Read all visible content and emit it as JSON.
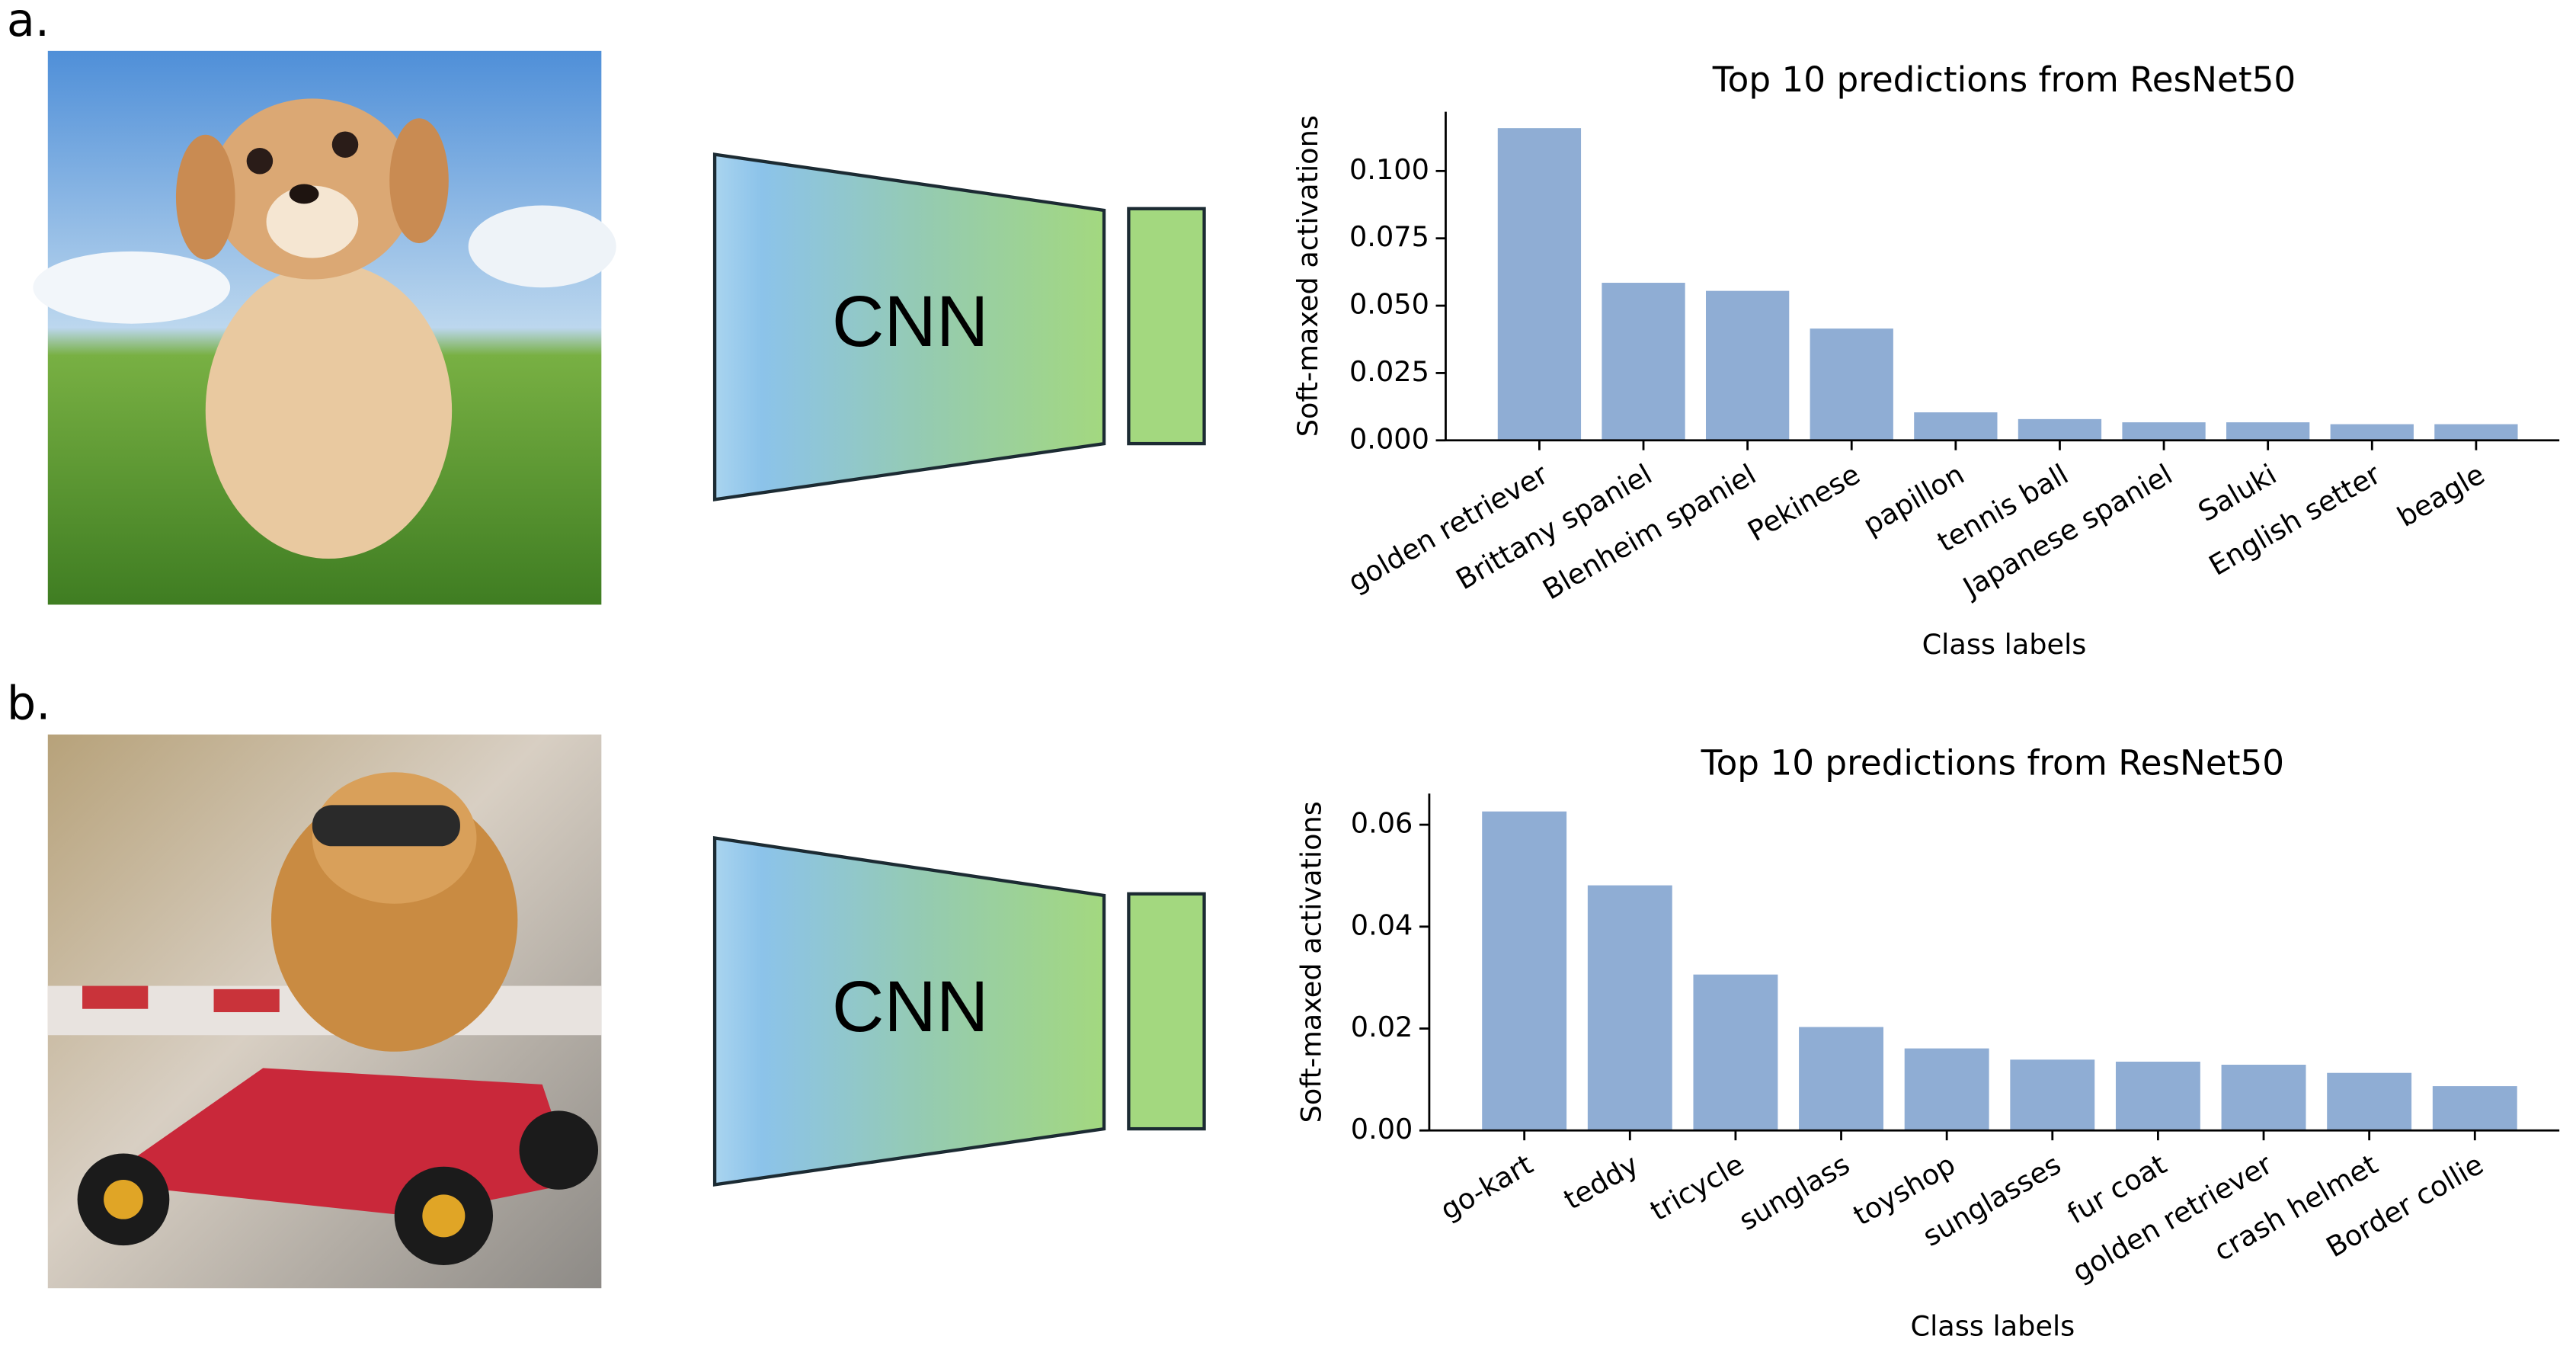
{
  "panels": [
    {
      "label": "a.",
      "model_label": "CNN"
    },
    {
      "label": "b.",
      "model_label": "CNN"
    }
  ],
  "chart_data": [
    {
      "type": "bar",
      "title": "Top 10 predictions from ResNet50",
      "x_label": "Class labels",
      "y_label": "Soft-maxed activations",
      "categories": [
        "golden retriever",
        "Brittany spaniel",
        "Blenheim spaniel",
        "Pekinese",
        "papillon",
        "tennis ball",
        "Japanese spaniel",
        "Saluki",
        "English setter",
        "beagle"
      ],
      "values": [
        0.1159,
        0.0585,
        0.0555,
        0.0415,
        0.0104,
        0.0079,
        0.0067,
        0.0067,
        0.006,
        0.006
      ],
      "color": "#8fadd4",
      "ylim": [
        0,
        0.122
      ],
      "yticks": [
        {
          "value": 0,
          "label": "0.000"
        },
        0.025,
        {
          "value": 0.05,
          "label": "0.050"
        },
        0.075,
        {
          "value": 0.1,
          "label": "0.100"
        }
      ]
    },
    {
      "type": "bar",
      "title": "Top 10 predictions from ResNet50",
      "x_label": "Class labels",
      "y_label": "Soft-maxed activations",
      "categories": [
        "go-kart",
        "teddy",
        "tricycle",
        "sunglass",
        "toyshop",
        "sunglasses",
        "fur coat",
        "golden retriever",
        "crash helmet",
        "Border collie"
      ],
      "values": [
        0.0626,
        0.0481,
        0.0306,
        0.0203,
        0.0161,
        0.0139,
        0.0135,
        0.0129,
        0.0113,
        0.0087
      ],
      "color": "#8fadd4",
      "ylim": [
        0,
        0.0661
      ],
      "yticks": [
        {
          "value": 0,
          "label": "0.00"
        },
        0.02,
        0.04,
        0.06
      ]
    }
  ]
}
